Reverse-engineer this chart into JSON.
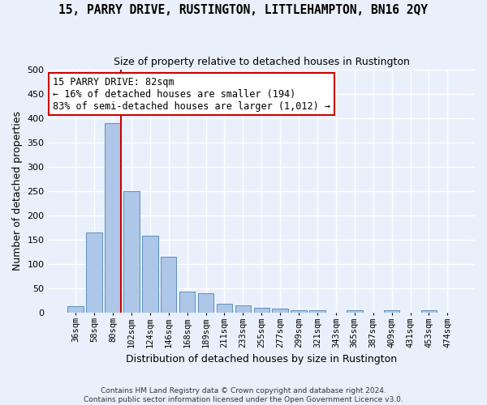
{
  "title": "15, PARRY DRIVE, RUSTINGTON, LITTLEHAMPTON, BN16 2QY",
  "subtitle": "Size of property relative to detached houses in Rustington",
  "xlabel": "Distribution of detached houses by size in Rustington",
  "ylabel": "Number of detached properties",
  "bar_color": "#aec6e8",
  "bar_edge_color": "#5a8fc0",
  "bins": [
    "36sqm",
    "58sqm",
    "80sqm",
    "102sqm",
    "124sqm",
    "146sqm",
    "168sqm",
    "189sqm",
    "211sqm",
    "233sqm",
    "255sqm",
    "277sqm",
    "299sqm",
    "321sqm",
    "343sqm",
    "365sqm",
    "387sqm",
    "409sqm",
    "431sqm",
    "453sqm",
    "474sqm"
  ],
  "values": [
    13,
    165,
    390,
    250,
    157,
    115,
    43,
    40,
    18,
    15,
    10,
    7,
    5,
    5,
    0,
    5,
    0,
    5,
    0,
    5,
    0
  ],
  "ylim": [
    0,
    500
  ],
  "yticks": [
    0,
    50,
    100,
    150,
    200,
    250,
    300,
    350,
    400,
    450,
    500
  ],
  "property_bin_index": 2,
  "annotation_text": "15 PARRY DRIVE: 82sqm\n← 16% of detached houses are smaller (194)\n83% of semi-detached houses are larger (1,012) →",
  "footer1": "Contains HM Land Registry data © Crown copyright and database right 2024.",
  "footer2": "Contains public sector information licensed under the Open Government Licence v3.0.",
  "background_color": "#eaf0fb",
  "grid_color": "#ffffff",
  "vline_color": "#cc0000"
}
